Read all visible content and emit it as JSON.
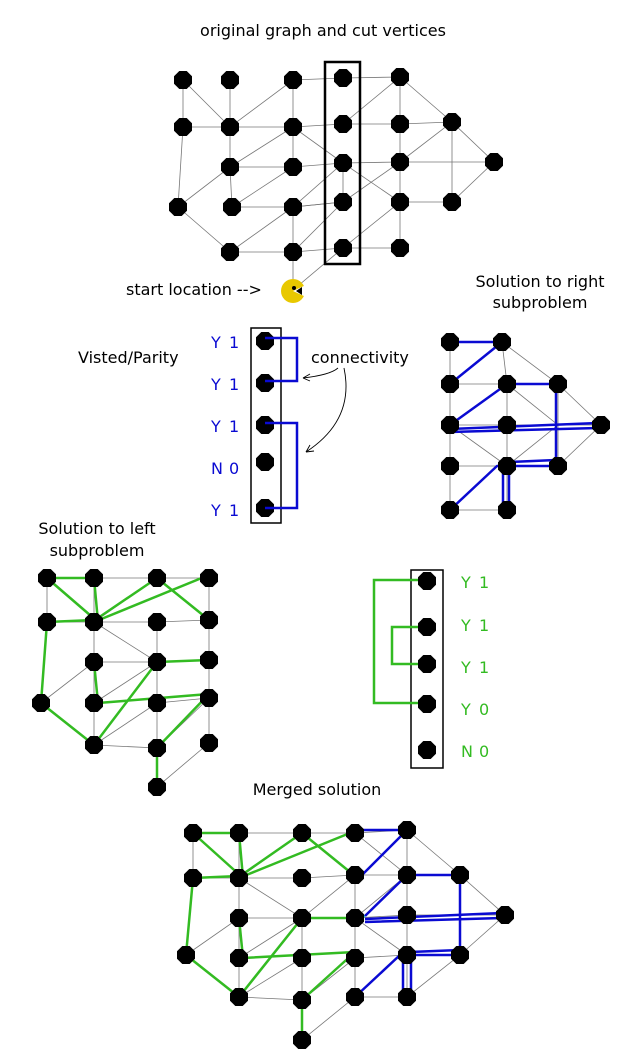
{
  "labels": {
    "title_original": "original graph and cut vertices",
    "start_location": "start location -->",
    "right_sub_line1": "Solution to right",
    "right_sub_line2": "subproblem",
    "visited_parity": "Visted/Parity",
    "connectivity": "connectivity",
    "left_sub_line1": "Solution to left",
    "left_sub_line2": "subproblem",
    "merged": "Merged solution"
  },
  "right_cut_states": [
    {
      "visited": "Y",
      "parity": "1"
    },
    {
      "visited": "Y",
      "parity": "1"
    },
    {
      "visited": "Y",
      "parity": "1"
    },
    {
      "visited": "N",
      "parity": "0"
    },
    {
      "visited": "Y",
      "parity": "1"
    }
  ],
  "left_cut_states": [
    {
      "visited": "Y",
      "parity": "1"
    },
    {
      "visited": "Y",
      "parity": "1"
    },
    {
      "visited": "Y",
      "parity": "1"
    },
    {
      "visited": "Y",
      "parity": "0"
    },
    {
      "visited": "N",
      "parity": "0"
    }
  ],
  "colors": {
    "node": "#000000",
    "edge": "#777777",
    "right_path": "#0a0ad2",
    "left_path": "#33bb22",
    "merge_join": "#22cccc",
    "pacman": "#e8c800",
    "frame": "#000000"
  }
}
